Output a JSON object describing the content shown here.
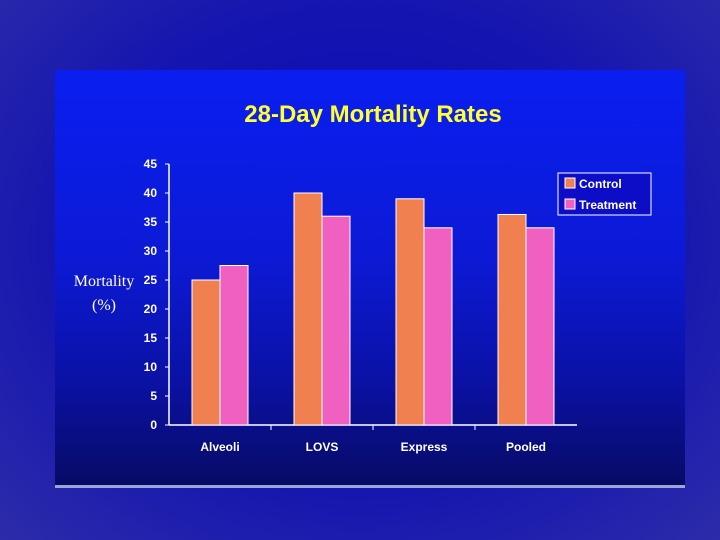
{
  "chart_data": {
    "type": "bar",
    "title": "28-Day Mortality Rates",
    "ylabel": [
      "Mortality",
      "(%)"
    ],
    "xlabel": "",
    "categories": [
      "Alveoli",
      "LOVS",
      "Express",
      "Pooled"
    ],
    "series": [
      {
        "name": "Control",
        "values": [
          25,
          40,
          39,
          36.3
        ],
        "color": "#f0804f"
      },
      {
        "name": "Treatment",
        "values": [
          27.5,
          36,
          34,
          34
        ],
        "color": "#f060c0"
      }
    ],
    "ylim": [
      0,
      45
    ],
    "yticks": [
      "0",
      "5",
      "10",
      "15",
      "20",
      "25",
      "30",
      "35",
      "40",
      "45"
    ],
    "legend_position": "top-right",
    "grid": false
  },
  "colors": {
    "title": "#ffff33",
    "axis": "#ffffff",
    "legend_bg": "#ffffff"
  }
}
